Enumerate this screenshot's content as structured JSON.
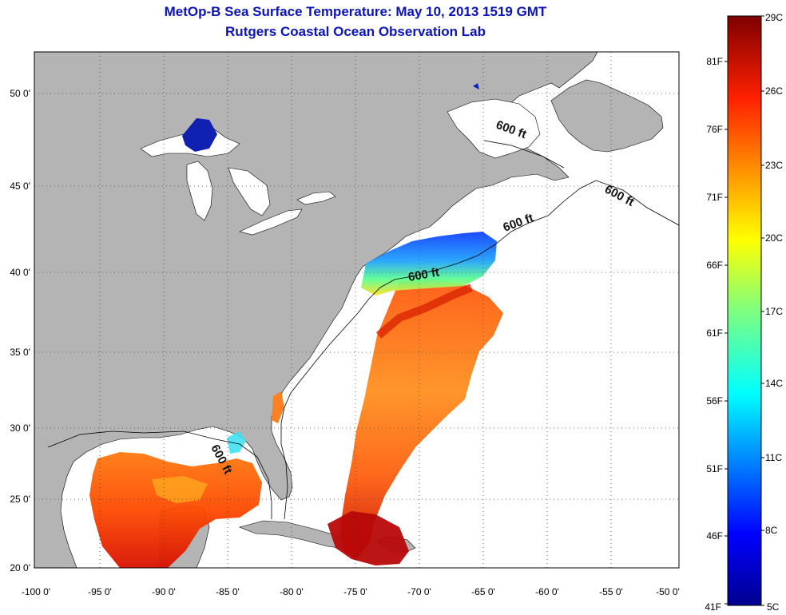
{
  "title": {
    "line1": "MetOp-B Sea Surface Temperature:  May 10, 2013 1519 GMT",
    "line2": "Rutgers Coastal Ocean Observation Lab"
  },
  "axes": {
    "lon_labels": [
      "-100 0'",
      "-95 0'",
      "-90 0'",
      "-85 0'",
      "-80 0'",
      "-75 0'",
      "-70 0'",
      "-65 0'",
      "-60 0'",
      "-55 0'",
      "-50 0'"
    ],
    "lat_labels": [
      "50 0'",
      "45 0'",
      "40 0'",
      "35 0'",
      "30 0'",
      "25 0'",
      "20 0'"
    ]
  },
  "contour_label": "600 ft",
  "colorbar": {
    "celsius_labels": [
      "29C",
      "26C",
      "23C",
      "20C",
      "17C",
      "14C",
      "11C",
      "8C",
      "5C"
    ],
    "fahrenheit_labels": [
      "81F",
      "76F",
      "71F",
      "66F",
      "61F",
      "56F",
      "51F",
      "46F",
      "41F"
    ]
  },
  "colors": {
    "title": "#0a14b8",
    "land": "#b4b4b4",
    "ocean": "#ffffff",
    "cold": "#00008f",
    "warm": "#800000"
  }
}
